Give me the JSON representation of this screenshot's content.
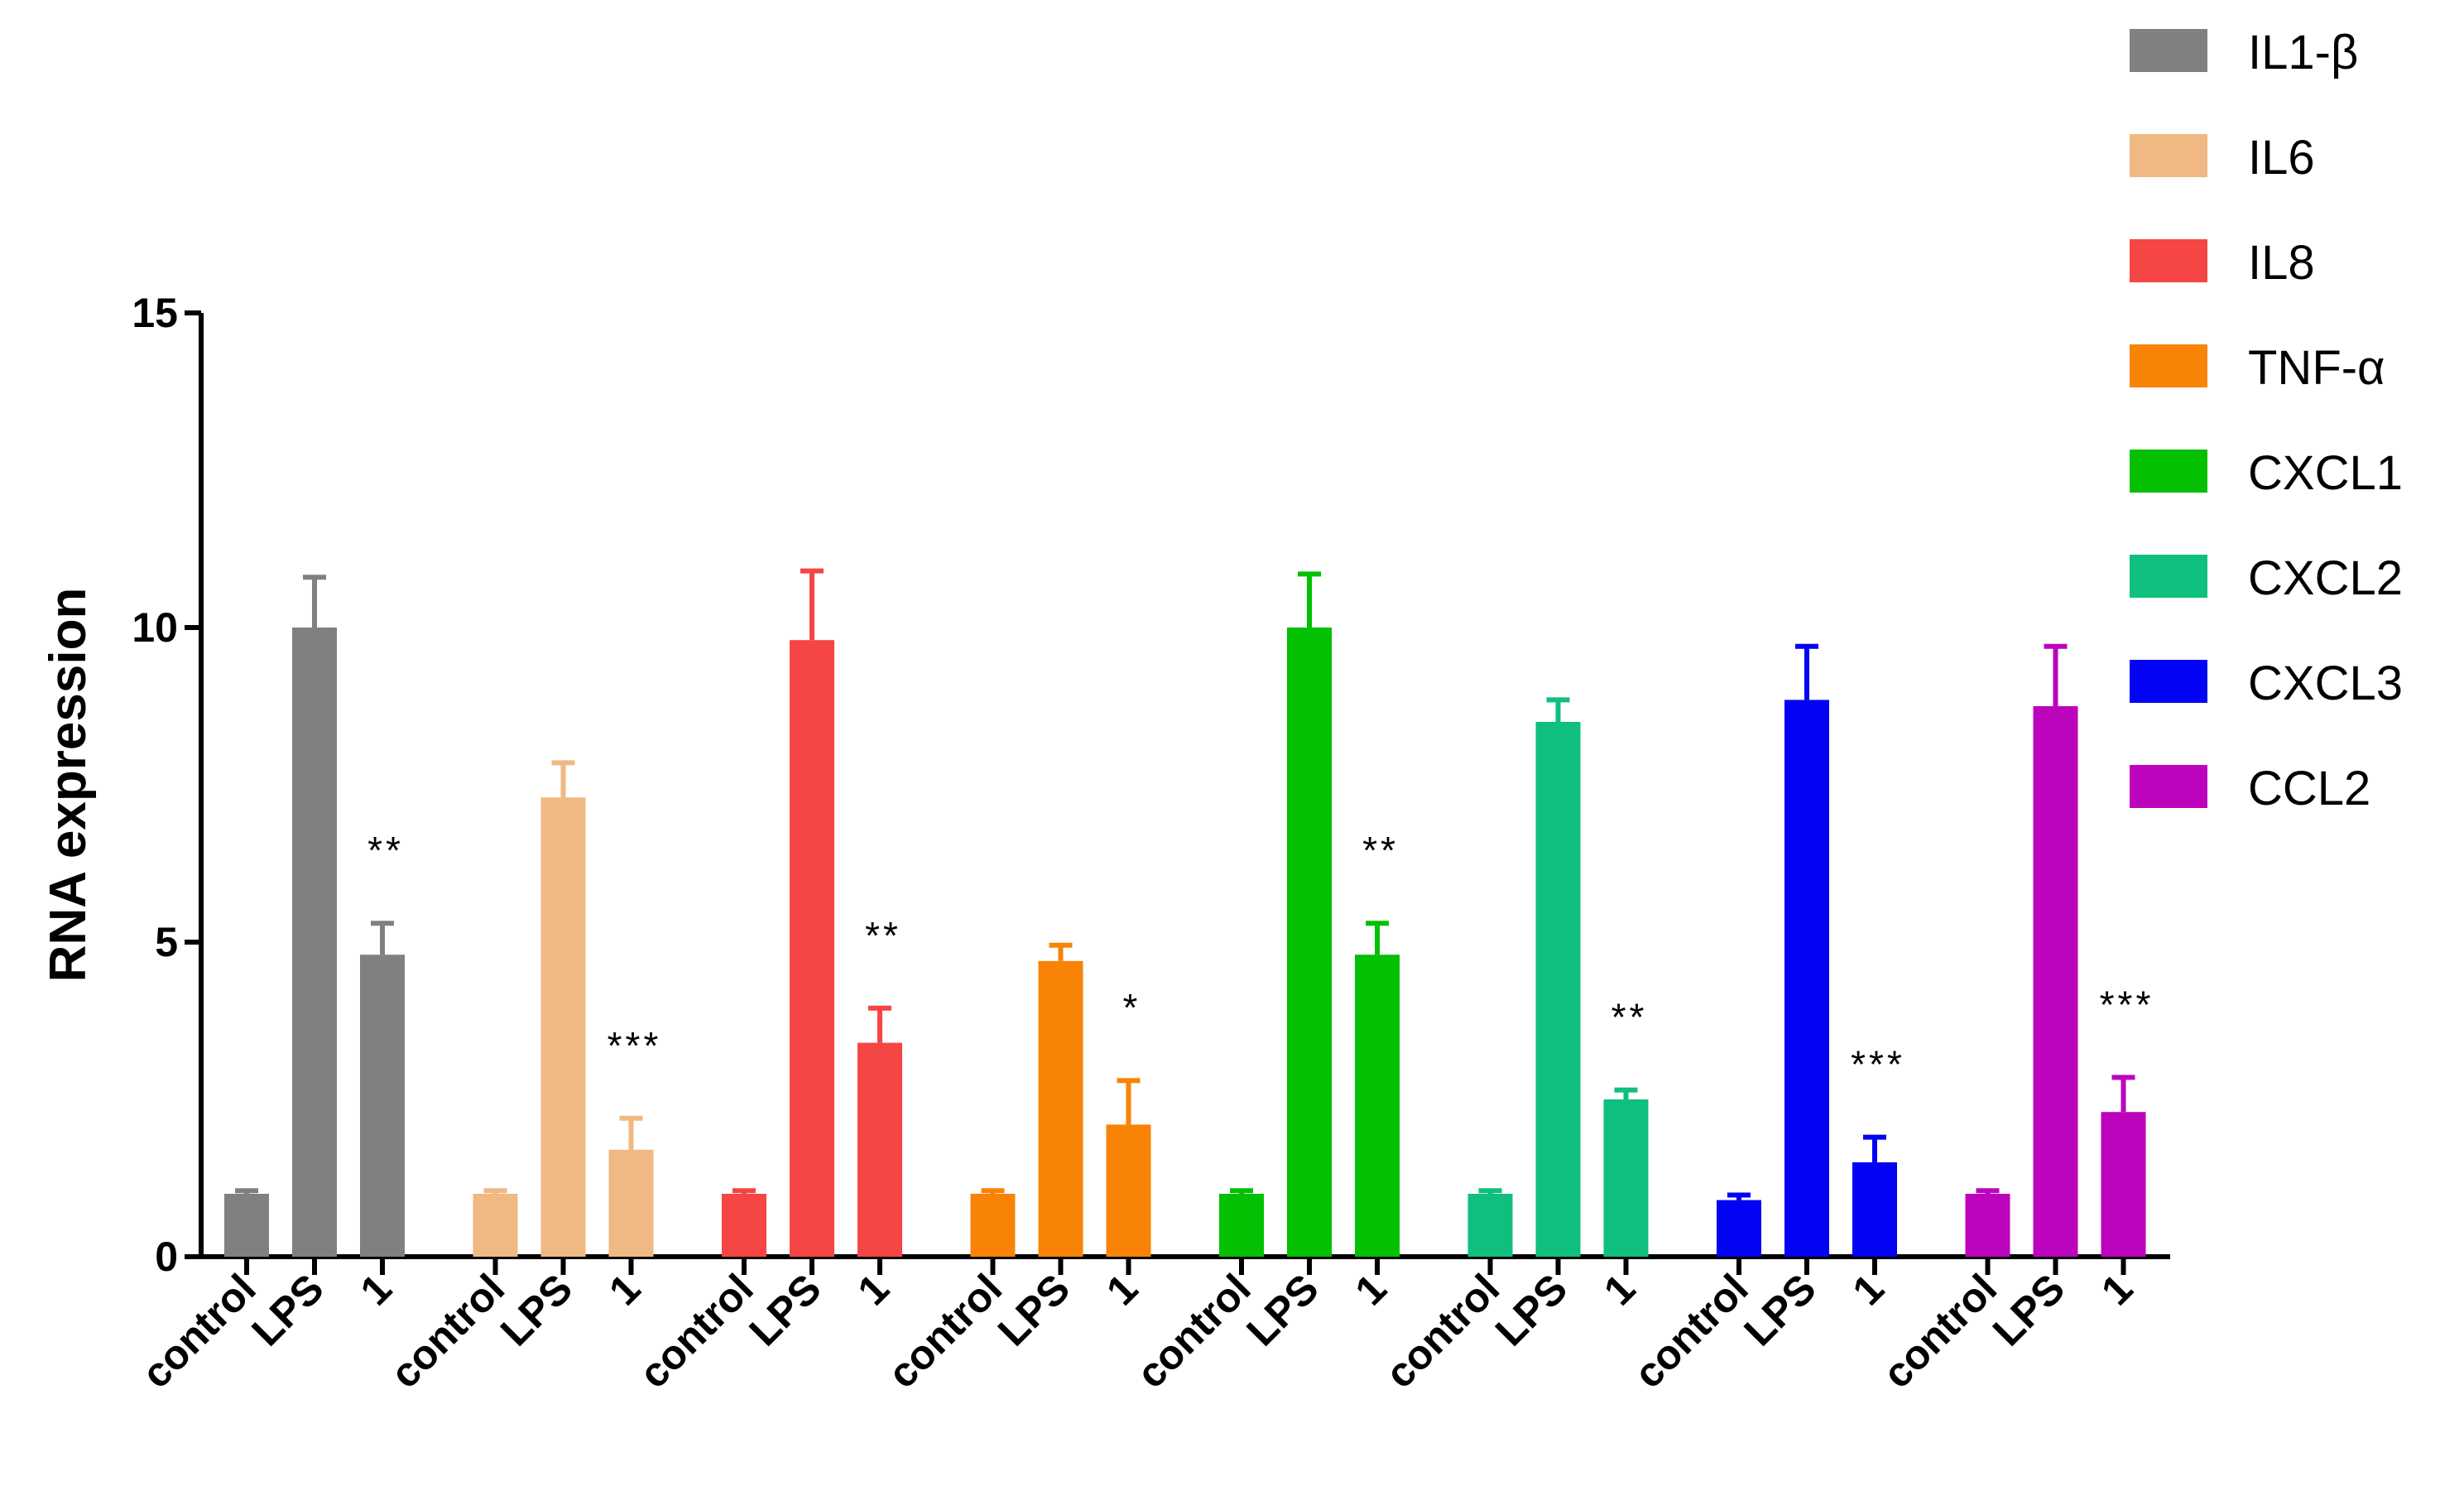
{
  "chart_data": {
    "type": "bar",
    "title": "",
    "xlabel": "",
    "ylabel": "RNA expression",
    "ylim": [
      0,
      15
    ],
    "yticks": [
      0,
      5,
      10,
      15
    ],
    "ytick_labels": [
      "0",
      "5",
      "10",
      "15"
    ],
    "legend_position": "top-right",
    "categories": [
      "control",
      "LPS",
      "1"
    ],
    "series": [
      {
        "name": "IL1-β",
        "color": "#808080",
        "values": [
          1.0,
          10.0,
          4.8
        ],
        "errors": [
          0.05,
          0.8,
          0.5
        ],
        "significance": [
          "",
          "",
          "**"
        ]
      },
      {
        "name": "IL6",
        "color": "#F0B882",
        "values": [
          1.0,
          7.3,
          1.7
        ],
        "errors": [
          0.05,
          0.55,
          0.5
        ],
        "significance": [
          "",
          "",
          "***"
        ]
      },
      {
        "name": "IL8",
        "color": "#F54545",
        "values": [
          1.0,
          9.8,
          3.4
        ],
        "errors": [
          0.05,
          1.1,
          0.55
        ],
        "significance": [
          "",
          "",
          "**"
        ]
      },
      {
        "name": "TNF-α",
        "color": "#F98307",
        "values": [
          1.0,
          4.7,
          2.1
        ],
        "errors": [
          0.05,
          0.25,
          0.7
        ],
        "significance": [
          "",
          "",
          "*"
        ]
      },
      {
        "name": "CXCL1",
        "color": "#03C003",
        "values": [
          1.0,
          10.0,
          4.8
        ],
        "errors": [
          0.05,
          0.85,
          0.5
        ],
        "significance": [
          "",
          "",
          "**"
        ]
      },
      {
        "name": "CXCL2",
        "color": "#0FBF7D",
        "values": [
          1.0,
          8.5,
          2.5
        ],
        "errors": [
          0.05,
          0.35,
          0.15
        ],
        "significance": [
          "",
          "",
          "**"
        ]
      },
      {
        "name": "CXCL3",
        "color": "#0202F4",
        "values": [
          0.9,
          8.85,
          1.5
        ],
        "errors": [
          0.08,
          0.85,
          0.4
        ],
        "significance": [
          "",
          "",
          "***"
        ]
      },
      {
        "name": "CCL2",
        "color": "#BD04BD",
        "values": [
          1.0,
          8.75,
          2.3
        ],
        "errors": [
          0.05,
          0.95,
          0.55
        ],
        "significance": [
          "",
          "",
          "***"
        ]
      }
    ]
  }
}
